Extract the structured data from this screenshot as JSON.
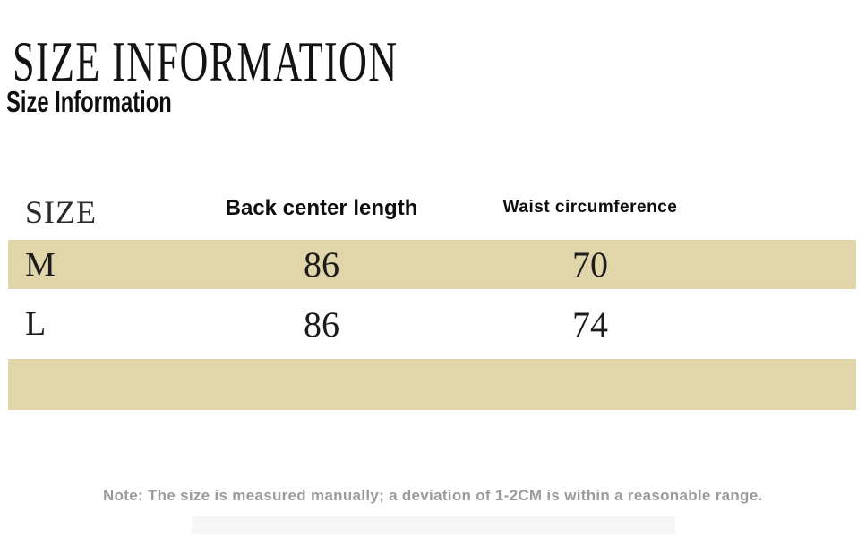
{
  "page": {
    "title": "SIZE INFORMATION",
    "subtitle": "Size Information",
    "note": "Note: The size is measured manually; a deviation of 1-2CM is within a reasonable range."
  },
  "colors": {
    "highlight_band": "#e1d6aa",
    "note_gray": "#9b9b9b",
    "text_ink": "#151515"
  },
  "table": {
    "columns": [
      "SIZE",
      "Back center length",
      "Waist circumference"
    ],
    "rows": [
      {
        "size": "M",
        "back_center_length": "86",
        "waist_circumference": "70",
        "highlighted": true
      },
      {
        "size": "L",
        "back_center_length": "86",
        "waist_circumference": "74",
        "highlighted": false
      }
    ],
    "footer_band_empty": true
  }
}
